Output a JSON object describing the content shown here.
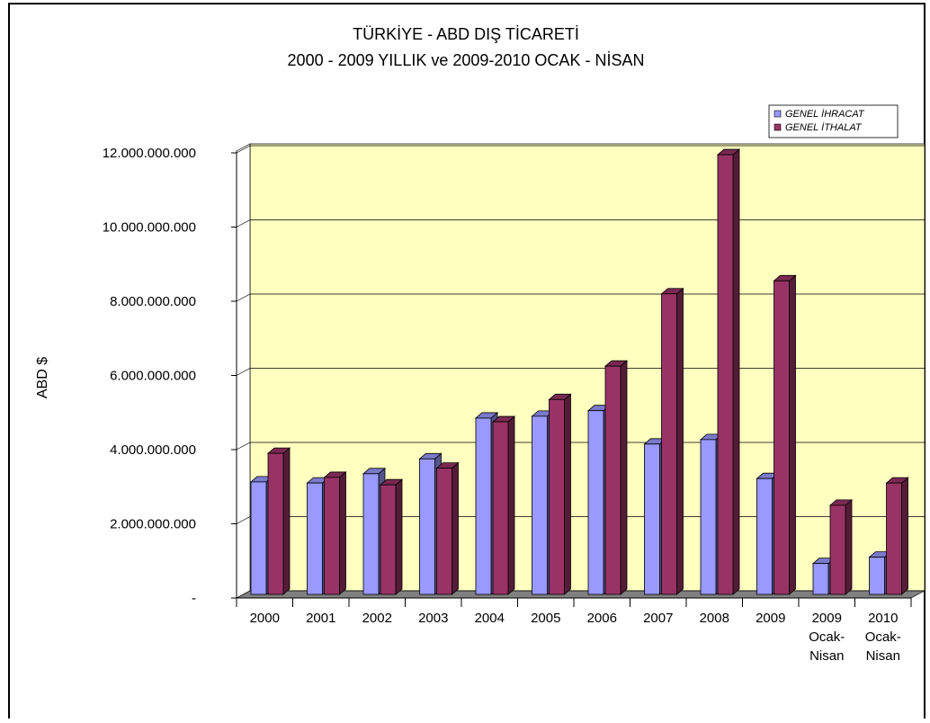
{
  "chart_data": {
    "type": "bar",
    "title": "TÜRKİYE - ABD DIŞ TİCARETİ",
    "subtitle": "2000 - 2009 YILLIK ve 2009-2010 OCAK - NİSAN",
    "y_label": "ABD $",
    "categories": [
      "2000",
      "2001",
      "2002",
      "2003",
      "2004",
      "2005",
      "2006",
      "2007",
      "2008",
      "2009",
      "2009\nOcak-\nNisan",
      "2010\nOcak-\nNisan"
    ],
    "series": [
      {
        "name": "GENEL İHRACAT",
        "color": "#9999ff",
        "values": [
          3130000000,
          3100000000,
          3350000000,
          3750000000,
          4850000000,
          4900000000,
          5050000000,
          4150000000,
          4270000000,
          3220000000,
          930000000,
          1100000000
        ]
      },
      {
        "name": "GENEL İTHALAT",
        "color": "#993366",
        "values": [
          3900000000,
          3250000000,
          3050000000,
          3500000000,
          4750000000,
          5350000000,
          6250000000,
          8200000000,
          11950000000,
          8550000000,
          2500000000,
          3100000000
        ]
      }
    ],
    "ylim": [
      0,
      12000000000
    ],
    "yticks": [
      {
        "value": 0,
        "label": "-"
      },
      {
        "value": 2000000000,
        "label": "2.000.000.000"
      },
      {
        "value": 4000000000,
        "label": "4.000.000.000"
      },
      {
        "value": 6000000000,
        "label": "6.000.000.000"
      },
      {
        "value": 8000000000,
        "label": "8.000.000.000"
      },
      {
        "value": 10000000000,
        "label": "10.000.000.000"
      },
      {
        "value": 12000000000,
        "label": "12.000.000.000"
      }
    ],
    "grid": true,
    "legend": "top-right",
    "wall_color": "#ffffc0",
    "floor_color": "#808080"
  }
}
